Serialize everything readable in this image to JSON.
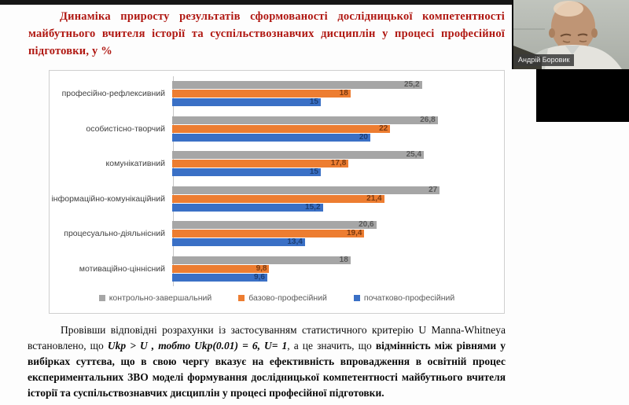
{
  "window": {
    "participant_name": "Андрій Боровик"
  },
  "slide": {
    "title": "Динаміка приросту результатів сформованості дослідницької компетентності майбутнього вчителя історії та суспільствознавчих дисциплін у процесі професійної підготовки, у %",
    "paragraph": {
      "part1": "Провівши відповідні розрахунки із застосуванням статистичного критерію U Manna-Whitneya встановлено, що ",
      "part2_bold_italic": "Ukp > U , тобто Ukp(0.01) = 6, U= 1",
      "part3": ", а це значить, що ",
      "part4_bold": "відмінність між рівнями у вибірках суттєва, що в свою чергу вказує на ефективність впровадження в освітній процес експериментальних ЗВО моделі формування дослідницької компетентності майбутнього вчителя історії та суспільствознавчих дисциплін у процесі професійної підготовки."
    }
  },
  "chart_data": {
    "type": "bar",
    "orientation": "horizontal",
    "title": "",
    "xlabel": "",
    "ylabel": "",
    "xlim": [
      0,
      30
    ],
    "grid": false,
    "legend_position": "bottom",
    "decimal_separator": ",",
    "categories": [
      "професійно-рефлексивний",
      "особистісно-творчий",
      "комунікативний",
      "інформаційно-комунікаційний",
      "процесуально-діяльнісний",
      "мотиваційно-ціннісний"
    ],
    "series": [
      {
        "name": "контрольно-завершальний",
        "color": "#a6a6a6",
        "label_color": "#595959",
        "values": [
          25.2,
          26.8,
          25.4,
          27,
          20.6,
          18
        ],
        "labels": [
          "25,2",
          "26,8",
          "25,4",
          "27",
          "20,6",
          "18"
        ]
      },
      {
        "name": "базово-професійний",
        "color": "#ed7d31",
        "label_color": "#7b3a10",
        "values": [
          18,
          22,
          17.8,
          21.4,
          19.4,
          9.8
        ],
        "labels": [
          "18",
          "22",
          "17,8",
          "21,4",
          "19,4",
          "9,8"
        ]
      },
      {
        "name": "початково-професійний",
        "color": "#3a70c6",
        "label_color": "#1c3e73",
        "values": [
          15,
          20,
          15,
          15.2,
          13.4,
          9.6
        ],
        "labels": [
          "15",
          "20",
          "15",
          "15,2",
          "13,4",
          "9,6"
        ]
      }
    ]
  }
}
